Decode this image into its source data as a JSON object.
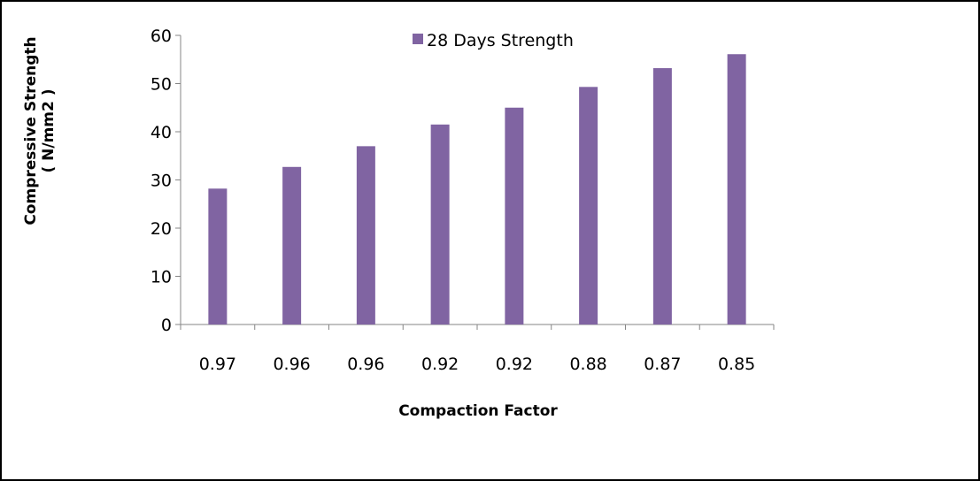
{
  "chart_data": {
    "type": "bar",
    "categories": [
      "0.97",
      "0.96",
      "0.96",
      "0.92",
      "0.92",
      "0.88",
      "0.87",
      "0.85"
    ],
    "series": [
      {
        "name": "28 Days Strength",
        "values": [
          28.2,
          32.7,
          37.0,
          41.5,
          45.0,
          49.3,
          53.2,
          56.1
        ],
        "color": "#8064a2"
      }
    ],
    "xlabel": "Compaction Factor",
    "ylabel": "Compressive Strength",
    "ylabel_unit": "( N/mm2 )",
    "ylim": [
      0,
      60
    ],
    "yticks": [
      "0",
      "10",
      "20",
      "30",
      "40",
      "50",
      "60"
    ],
    "grid": false,
    "legend_position": "top-center"
  }
}
